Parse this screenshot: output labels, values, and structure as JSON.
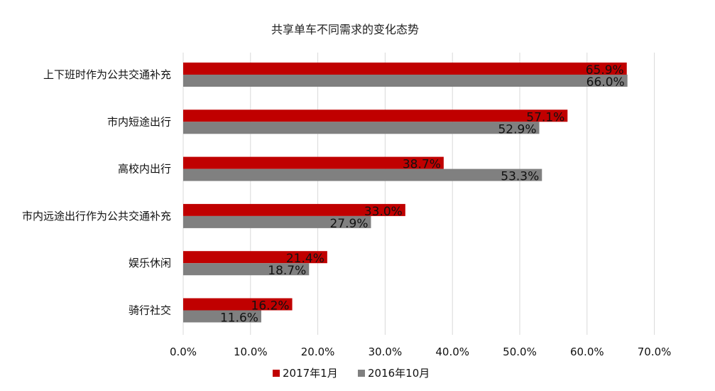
{
  "chart_data": {
    "type": "bar",
    "orientation": "horizontal",
    "title": "共享单车不同需求的变化态势",
    "categories": [
      "上下班时作为公共交通补充",
      "市内短途出行",
      "高校内出行",
      "市内远途出行作为公共交通补充",
      "娱乐休闲",
      "骑行社交"
    ],
    "series": [
      {
        "name": "2017年1月",
        "color": "#c00000",
        "values": [
          65.9,
          57.1,
          38.7,
          33.0,
          21.4,
          16.2
        ],
        "labels": [
          "65.9%",
          "57.1%",
          "38.7%",
          "33.0%",
          "21.4%",
          "16.2%"
        ]
      },
      {
        "name": "2016年10月",
        "color": "#808080",
        "values": [
          66.0,
          52.9,
          53.3,
          27.9,
          18.7,
          11.6
        ],
        "labels": [
          "66.0%",
          "52.9%",
          "53.3%",
          "27.9%",
          "18.7%",
          "11.6%"
        ]
      }
    ],
    "xlim": [
      0,
      70
    ],
    "xticks": [
      0,
      10,
      20,
      30,
      40,
      50,
      60,
      70
    ],
    "xtick_labels": [
      "0.0%",
      "10.0%",
      "20.0%",
      "30.0%",
      "40.0%",
      "50.0%",
      "60.0%",
      "70.0%"
    ],
    "grid": true,
    "legend_position": "bottom"
  }
}
